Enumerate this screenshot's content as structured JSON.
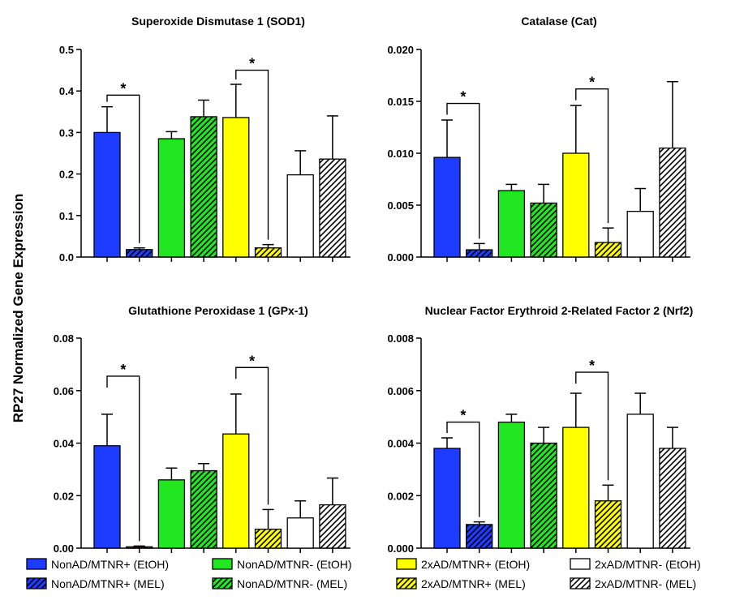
{
  "figure": {
    "ylabel": "RP27 Normalized Gene Expression"
  },
  "legend": [
    {
      "label": "NonAD/MTNR+  (EtOH)",
      "color": "#1e3cff",
      "hatch": false
    },
    {
      "label": "NonAD/MTNR-  (EtOH)",
      "color": "#22e622",
      "hatch": false
    },
    {
      "label": "2xAD/MTNR+  (EtOH)",
      "color": "#ffff00",
      "hatch": false
    },
    {
      "label": "2xAD/MTNR-  (EtOH)",
      "color": "#ffffff",
      "hatch": false
    },
    {
      "label": "NonAD/MTNR+  (MEL)",
      "color": "#1e3cff",
      "hatch": true
    },
    {
      "label": "NonAD/MTNR-  (MEL)",
      "color": "#22e622",
      "hatch": true
    },
    {
      "label": "2xAD/MTNR+  (MEL)",
      "color": "#ffff00",
      "hatch": true
    },
    {
      "label": "2xAD/MTNR-  (MEL)",
      "color": "#ffffff",
      "hatch": true
    }
  ],
  "chart_data": [
    {
      "type": "bar",
      "title": "Superoxide Dismutase 1 (SOD1)",
      "ylim": [
        0,
        0.5
      ],
      "yticks": [
        "0.0",
        "0.1",
        "0.2",
        "0.3",
        "0.4",
        "0.5"
      ],
      "tick_values": [
        0,
        0.1,
        0.2,
        0.3,
        0.4,
        0.5
      ],
      "values": [
        0.3,
        0.018,
        0.285,
        0.338,
        0.336,
        0.022,
        0.198,
        0.236
      ],
      "errors": [
        0.062,
        0.004,
        0.017,
        0.04,
        0.08,
        0.008,
        0.058,
        0.104
      ],
      "significance": [
        {
          "from": 0,
          "to": 1,
          "y": 0.39,
          "label": "*"
        },
        {
          "from": 4,
          "to": 5,
          "y": 0.45,
          "label": "*"
        }
      ]
    },
    {
      "type": "bar",
      "title": "Catalase  (Cat)",
      "ylim": [
        0,
        0.02
      ],
      "yticks": [
        "0.000",
        "0.005",
        "0.010",
        "0.015",
        "0.020"
      ],
      "tick_values": [
        0,
        0.005,
        0.01,
        0.015,
        0.02
      ],
      "values": [
        0.0096,
        0.0007,
        0.0064,
        0.0052,
        0.01,
        0.0014,
        0.0044,
        0.0105
      ],
      "errors": [
        0.0036,
        0.0006,
        0.0006,
        0.0018,
        0.0046,
        0.0014,
        0.0022,
        0.0064
      ],
      "significance": [
        {
          "from": 0,
          "to": 1,
          "y": 0.0148,
          "label": "*"
        },
        {
          "from": 4,
          "to": 5,
          "y": 0.0162,
          "label": "*"
        }
      ]
    },
    {
      "type": "bar",
      "title": "Glutathione Peroxidase 1 (GPx-1)",
      "ylim": [
        0,
        0.08
      ],
      "yticks": [
        "0.00",
        "0.02",
        "0.04",
        "0.06",
        "0.08"
      ],
      "tick_values": [
        0,
        0.02,
        0.04,
        0.06,
        0.08
      ],
      "values": [
        0.039,
        0.0005,
        0.026,
        0.0295,
        0.0435,
        0.0072,
        0.0115,
        0.0165
      ],
      "errors": [
        0.012,
        0.0003,
        0.0045,
        0.0027,
        0.0152,
        0.0075,
        0.0065,
        0.0102
      ],
      "significance": [
        {
          "from": 0,
          "to": 1,
          "y": 0.0655,
          "label": "*"
        },
        {
          "from": 4,
          "to": 5,
          "y": 0.0688,
          "label": "*"
        }
      ]
    },
    {
      "type": "bar",
      "title": "Nuclear Factor Erythroid 2-Related Factor 2 (Nrf2)",
      "ylim": [
        0,
        0.008
      ],
      "yticks": [
        "0.000",
        "0.002",
        "0.004",
        "0.006",
        "0.008"
      ],
      "tick_values": [
        0,
        0.002,
        0.004,
        0.006,
        0.008
      ],
      "values": [
        0.0038,
        0.0009,
        0.0048,
        0.004,
        0.0046,
        0.0018,
        0.0051,
        0.0038
      ],
      "errors": [
        0.0004,
        0.0001,
        0.0003,
        0.0006,
        0.0013,
        0.0006,
        0.0008,
        0.0008
      ],
      "significance": [
        {
          "from": 0,
          "to": 1,
          "y": 0.0048,
          "label": "*"
        },
        {
          "from": 4,
          "to": 5,
          "y": 0.0067,
          "label": "*"
        }
      ]
    }
  ]
}
